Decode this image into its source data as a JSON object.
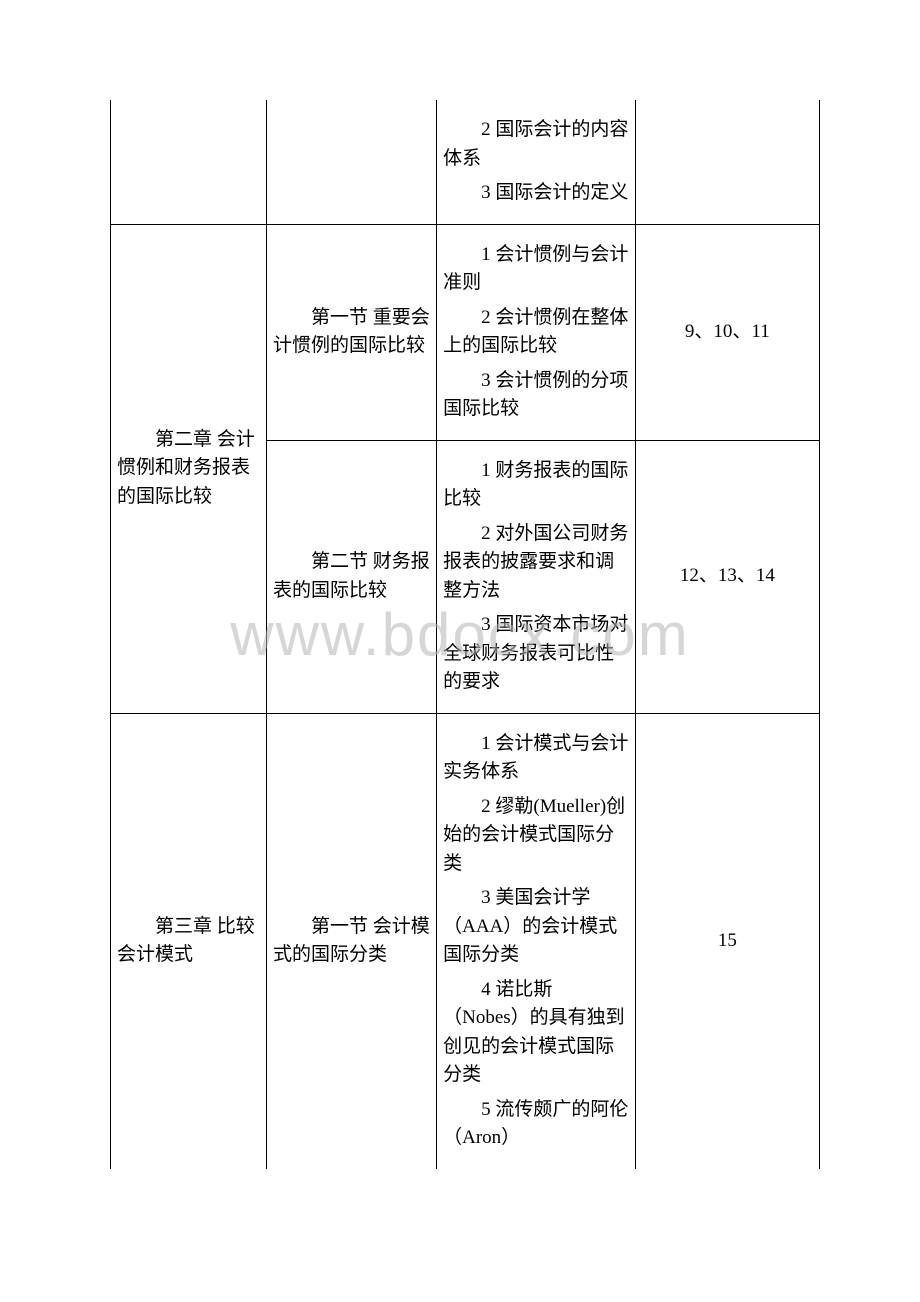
{
  "watermark": "www.bdocx.com",
  "table": {
    "rows": [
      {
        "col1": "",
        "col2": "",
        "col3": [
          "2 国际会计的内容体系",
          "3 国际会计的定义"
        ],
        "col4": "",
        "col1_rowspan": 1,
        "col2_rowspan": 1,
        "col4_rowspan": 1,
        "borders": {
          "top": false
        }
      },
      {
        "col1": "第二章 会计惯例和财务报表的国际比较",
        "col2": "第一节 重要会计惯例的国际比较",
        "col3": [
          "1 会计惯例与会计准则",
          "2 会计惯例在整体上的国际比较",
          "3 会计惯例的分项国际比较"
        ],
        "col4": "9、10、11",
        "col1_rowspan": 2
      },
      {
        "col2": "第二节 财务报表的国际比较",
        "col3": [
          "1 财务报表的国际比较",
          "2 对外国公司财务报表的披露要求和调整方法",
          "3 国际资本市场对全球财务报表可比性的要求"
        ],
        "col4": "12、13、14"
      },
      {
        "col1": "第三章  比较会计模式",
        "col2": "第一节 会计模式的国际分类",
        "col3": [
          "1 会计模式与会计实务体系",
          "2 缪勒(Mueller)创始的会计模式国际分类",
          "3 美国会计学（AAA）的会计模式国际分类",
          "4 诺比斯（Nobes）的具有独到创见的会计模式国际分类",
          "5 流传颇广的阿伦（Aron）"
        ],
        "col4": "15",
        "col1_rowspan": 1,
        "borders": {
          "bottom_col1": false,
          "bottom_col4": false
        }
      }
    ]
  }
}
